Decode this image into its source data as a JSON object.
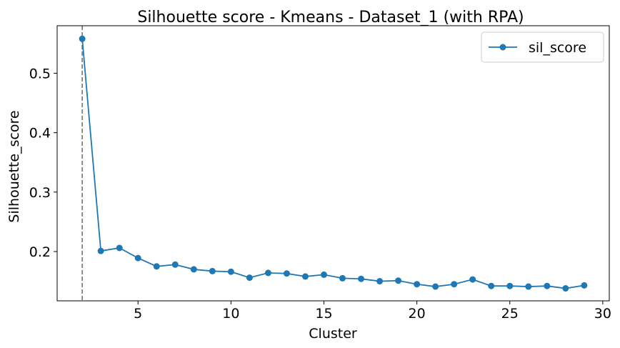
{
  "chart_data": {
    "type": "line",
    "title": "Silhouette score - Kmeans - Dataset_1 (with RPA)",
    "xlabel": "Cluster",
    "ylabel": "Silhouette_score",
    "xlim": [
      0.65,
      30.35
    ],
    "ylim": [
      0.117,
      0.58
    ],
    "xticks": [
      5,
      10,
      15,
      20,
      25,
      30
    ],
    "yticks": [
      0.2,
      0.3,
      0.4,
      0.5
    ],
    "ytick_labels": [
      "0.2",
      "0.3",
      "0.4",
      "0.5"
    ],
    "grid": false,
    "legend_position": "top-right",
    "series": [
      {
        "name": "sil_score",
        "color": "#1f77b4",
        "marker": "circle",
        "x": [
          2,
          3,
          4,
          5,
          6,
          7,
          8,
          9,
          10,
          11,
          12,
          13,
          14,
          15,
          16,
          17,
          18,
          19,
          20,
          21,
          22,
          23,
          24,
          25,
          26,
          27,
          28,
          29
        ],
        "y": [
          0.558,
          0.201,
          0.206,
          0.189,
          0.175,
          0.178,
          0.17,
          0.167,
          0.166,
          0.156,
          0.164,
          0.163,
          0.158,
          0.161,
          0.155,
          0.154,
          0.15,
          0.151,
          0.145,
          0.141,
          0.145,
          0.153,
          0.142,
          0.142,
          0.141,
          0.142,
          0.138,
          0.143
        ]
      }
    ],
    "vline": {
      "x": 2,
      "style": "dashed",
      "color": "#808080"
    }
  }
}
